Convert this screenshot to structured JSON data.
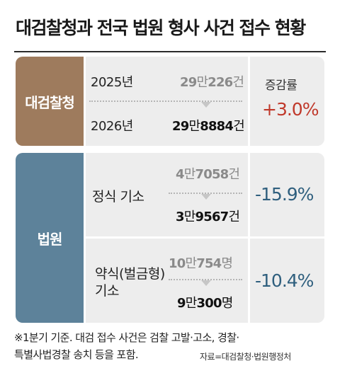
{
  "title": "대검찰청과 전국 법원 형사 사건 접수 현황",
  "prosecution": {
    "label": "대검찰청",
    "change_header": "증감률",
    "row1": {
      "year": "2025년",
      "value_a": "29",
      "value_b": "만",
      "value_c": "226",
      "value_d": "건"
    },
    "row2": {
      "year": "2026년",
      "value_a": "29",
      "value_b": "만",
      "value_c": "8884",
      "value_d": "건"
    },
    "change": "+3.0%"
  },
  "court": {
    "label": "법원",
    "formal": {
      "label": "정식 기소",
      "old": {
        "a": "4",
        "b": "만",
        "c": "7058",
        "d": "건"
      },
      "new": {
        "a": "3",
        "b": "만",
        "c": "9567",
        "d": "건"
      },
      "change": "-15.9%"
    },
    "summary": {
      "label_line1": "약식(벌금형)",
      "label_line2": "기소",
      "old": {
        "a": "10",
        "b": "만",
        "c": "754",
        "d": "명"
      },
      "new": {
        "a": "9",
        "b": "만",
        "c": "300",
        "d": "명"
      },
      "change": "-10.4%"
    }
  },
  "footnote_line1": "※1분기 기준. 대검 접수 사건은 검찰 고발·고소, 경찰·",
  "footnote_line2": "특별사법경찰 송치 등을 포함.",
  "source": "자료=대검찰청·법원행정처",
  "colors": {
    "prosecution_label_bg": "#9e7b5d",
    "court_label_bg": "#5d829a",
    "increase": "#c0392b",
    "decrease": "#2f5f7e"
  }
}
